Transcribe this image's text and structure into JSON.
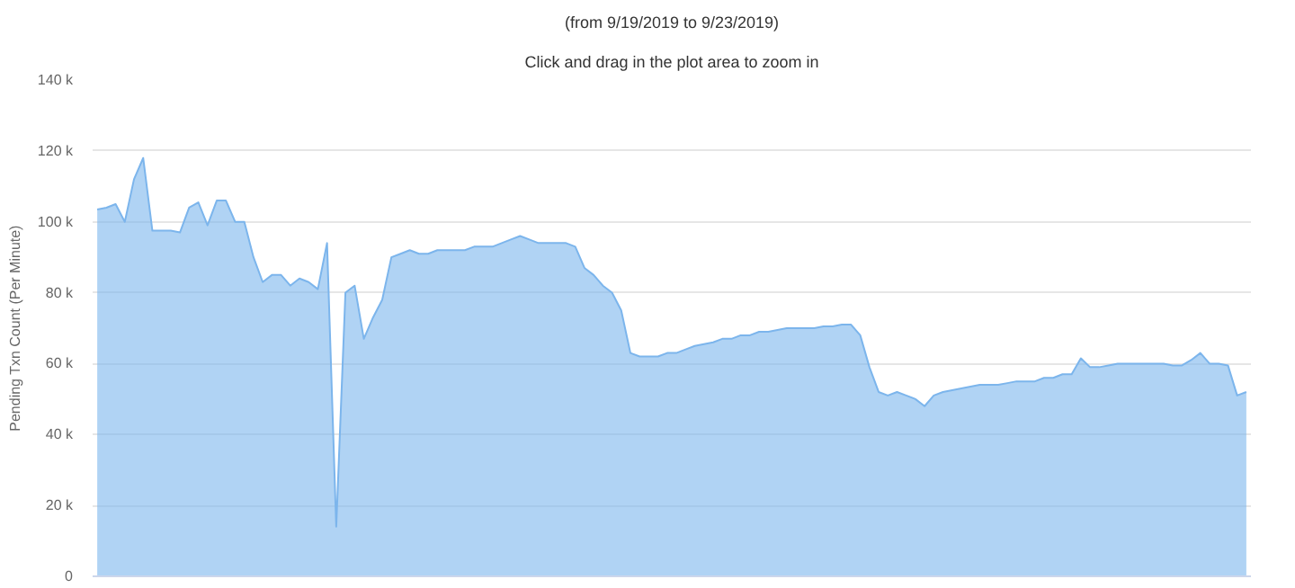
{
  "chart_data": {
    "type": "area",
    "subtitle": "(from 9/19/2019 to 9/23/2019)",
    "annotations": [
      "Click and drag in the plot area to zoom in"
    ],
    "ylabel": "Pending Txn Count (Per Minute)",
    "color": "#7cb5ec",
    "categories": [
      null,
      null,
      null,
      null,
      null,
      null,
      null,
      null,
      null,
      null,
      null,
      null,
      null,
      null,
      null,
      null,
      null,
      null,
      null,
      null,
      null,
      null,
      null,
      null,
      null,
      null,
      null,
      null,
      null,
      null,
      null,
      null,
      null,
      null,
      null,
      null,
      null,
      null,
      null,
      null,
      null,
      null,
      null,
      null,
      null,
      null,
      null,
      null,
      null,
      null,
      null,
      null,
      null,
      null,
      null,
      null,
      null,
      null,
      null,
      null,
      null,
      null,
      null,
      null,
      null,
      null,
      null,
      null,
      null,
      null,
      null,
      null,
      null,
      null,
      null,
      null,
      null,
      null,
      null,
      null,
      null,
      null,
      null,
      null,
      null,
      null,
      null,
      null,
      null,
      null,
      null,
      null,
      null,
      null,
      null,
      null,
      null,
      null,
      null,
      null,
      null,
      null,
      null,
      null,
      null,
      null,
      null,
      null,
      null,
      null,
      null,
      null,
      null,
      null,
      null,
      null,
      null,
      null,
      null,
      null,
      null,
      null,
      null,
      null,
      null,
      null
    ],
    "values": [
      103500,
      104000,
      105000,
      100000,
      112000,
      118000,
      97500,
      97500,
      97500,
      97000,
      104000,
      105500,
      99000,
      106000,
      106000,
      100000,
      100000,
      90000,
      83000,
      85000,
      85000,
      82000,
      84000,
      83000,
      81000,
      94000,
      14000,
      80000,
      82000,
      67000,
      73000,
      78000,
      90000,
      91000,
      92000,
      91000,
      91000,
      92000,
      92000,
      92000,
      92000,
      93000,
      93000,
      93000,
      94000,
      95000,
      96000,
      95000,
      94000,
      94000,
      94000,
      94000,
      93000,
      87000,
      85000,
      82000,
      80000,
      75000,
      63000,
      62000,
      62000,
      62000,
      63000,
      63000,
      64000,
      65000,
      65500,
      66000,
      67000,
      67000,
      68000,
      68000,
      69000,
      69000,
      69500,
      70000,
      70000,
      70000,
      70000,
      70500,
      70500,
      71000,
      71000,
      68000,
      59000,
      52000,
      51000,
      52000,
      51000,
      50000,
      48000,
      51000,
      52000,
      52500,
      53000,
      53500,
      54000,
      54000,
      54000,
      54500,
      55000,
      55000,
      55000,
      56000,
      56000,
      57000,
      57000,
      61500,
      59000,
      59000,
      59500,
      60000,
      60000,
      60000,
      60000,
      60000,
      60000,
      59500,
      59500,
      61000,
      63000,
      60000,
      60000,
      59500,
      51000,
      52000
    ],
    "ylim": [
      0,
      140000
    ],
    "yticks": [
      {
        "value": 0,
        "label": "0"
      },
      {
        "value": 20000,
        "label": "20 k"
      },
      {
        "value": 40000,
        "label": "40 k"
      },
      {
        "value": 60000,
        "label": "60 k"
      },
      {
        "value": 80000,
        "label": "80 k"
      },
      {
        "value": 100000,
        "label": "100 k"
      },
      {
        "value": 120000,
        "label": "120 k"
      },
      {
        "value": 140000,
        "label": "140 k"
      }
    ],
    "grid": "y"
  }
}
